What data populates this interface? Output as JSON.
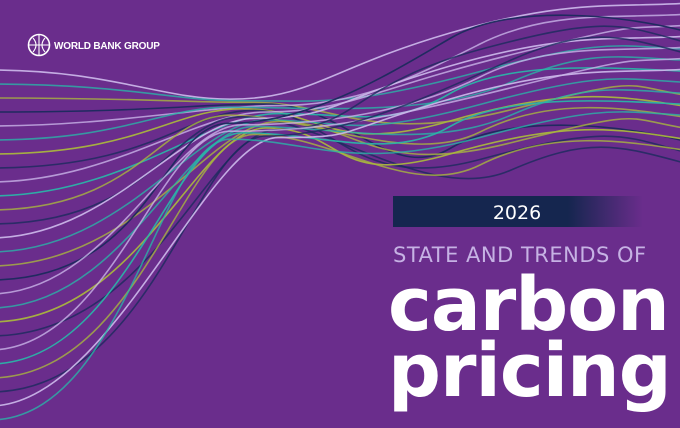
{
  "logo": "WORLD BANK GROUP",
  "year": "2026",
  "subtitle": "STATE AND TRENDS OF",
  "title": [
    "carbon",
    "pricing"
  ]
}
